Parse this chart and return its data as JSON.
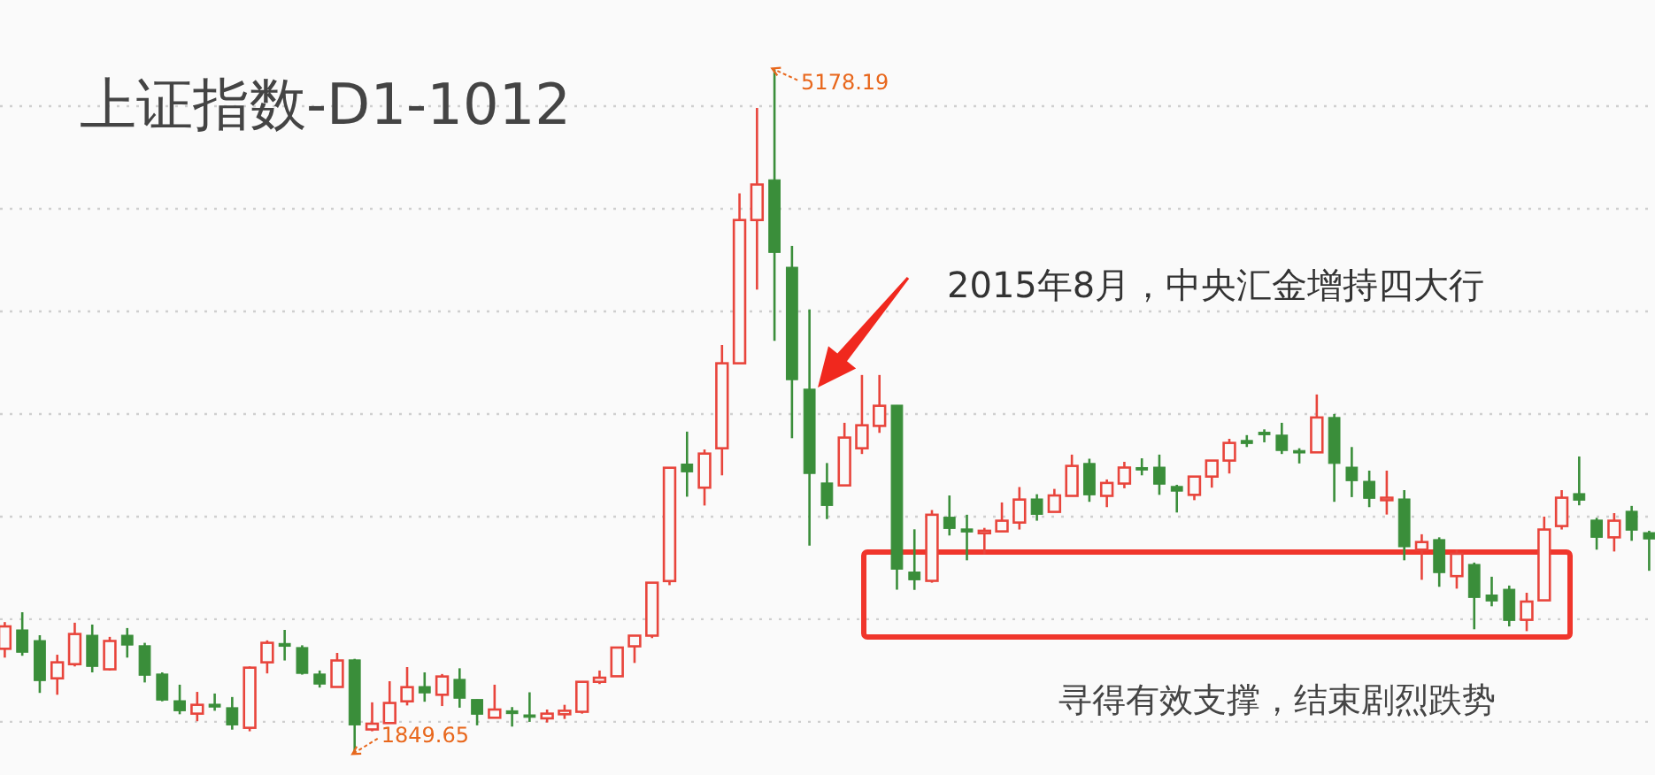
{
  "chart_data": {
    "type": "candlestick",
    "title": "上证指数-D1-1012",
    "annotations": [
      "2015年8月，中央汇金增持四大行",
      "寻得有效支撑，结束剧烈跌势",
      "5178.19",
      "1849.65"
    ],
    "categories": [
      null,
      null,
      null,
      null,
      null,
      null,
      null,
      null,
      null,
      null,
      null,
      null,
      null,
      null,
      null,
      null,
      null,
      null,
      null,
      null,
      null,
      null,
      null,
      null,
      null,
      null,
      null,
      null,
      null,
      null,
      null,
      null,
      null,
      null,
      null,
      null,
      null,
      null,
      null,
      null,
      null,
      null,
      null,
      null,
      null,
      null,
      null,
      null,
      null,
      null,
      null,
      null,
      null,
      null,
      null,
      null,
      null,
      null,
      null,
      null,
      null,
      null,
      null,
      null,
      null,
      null,
      null,
      null,
      null,
      null,
      null,
      null,
      null,
      null,
      null,
      null,
      null,
      null,
      null,
      null,
      null,
      null,
      null,
      null,
      null,
      null,
      null,
      null,
      null,
      null,
      null,
      null,
      null,
      null,
      null
    ],
    "ohlc": [
      [
        2356,
        2486,
        2313,
        2465
      ],
      [
        2448,
        2534,
        2322,
        2339
      ],
      [
        2396,
        2422,
        2141,
        2201
      ],
      [
        2212,
        2327,
        2132,
        2290
      ],
      [
        2281,
        2483,
        2270,
        2428
      ],
      [
        2422,
        2474,
        2241,
        2270
      ],
      [
        2256,
        2414,
        2250,
        2394
      ],
      [
        2422,
        2457,
        2313,
        2374
      ],
      [
        2371,
        2385,
        2192,
        2227
      ],
      [
        2233,
        2241,
        2100,
        2106
      ],
      [
        2103,
        2181,
        2037,
        2054
      ],
      [
        2040,
        2146,
        2003,
        2083
      ],
      [
        2086,
        2138,
        2054,
        2072
      ],
      [
        2069,
        2121,
        1962,
        1985
      ],
      [
        1971,
        2270,
        1954,
        2264
      ],
      [
        2290,
        2397,
        2236,
        2385
      ],
      [
        2382,
        2448,
        2299,
        2368
      ],
      [
        2362,
        2373,
        2230,
        2236
      ],
      [
        2233,
        2250,
        2167,
        2184
      ],
      [
        2170,
        2336,
        2170,
        2299
      ],
      [
        2302,
        2307,
        1849.65,
        1985
      ],
      [
        1963,
        2095,
        1954,
        1991
      ],
      [
        1994,
        2198,
        1994,
        2092
      ],
      [
        2100,
        2267,
        2080,
        2169
      ],
      [
        2172,
        2241,
        2098,
        2141
      ],
      [
        2132,
        2233,
        2077,
        2221
      ],
      [
        2207,
        2261,
        2069,
        2115
      ],
      [
        2109,
        2109,
        1983,
        2037
      ],
      [
        2020,
        2181,
        2020,
        2060
      ],
      [
        2054,
        2072,
        1977,
        2040
      ],
      [
        2034,
        2144,
        2000,
        2029
      ],
      [
        2017,
        2060,
        1997,
        2040
      ],
      [
        2037,
        2083,
        2014,
        2054
      ],
      [
        2049,
        2198,
        2040,
        2195
      ],
      [
        2195,
        2250,
        2184,
        2215
      ],
      [
        2222,
        2362,
        2222,
        2362
      ],
      [
        2368,
        2420,
        2287,
        2420
      ],
      [
        2420,
        2678,
        2408,
        2678
      ],
      [
        2686,
        3238,
        2666,
        3238
      ],
      [
        3256,
        3414,
        3097,
        3218
      ],
      [
        3141,
        3327,
        3054,
        3307
      ],
      [
        3333,
        3836,
        3201,
        3747
      ],
      [
        3747,
        4575,
        3747,
        4445
      ],
      [
        4445,
        4991,
        4106,
        4618
      ],
      [
        4641,
        5178.19,
        3856,
        4287
      ],
      [
        4215,
        4319,
        3382,
        3667
      ],
      [
        3621,
        4009,
        2859,
        3210
      ],
      [
        3164,
        3261,
        2988,
        3054
      ],
      [
        3152,
        3457,
        3152,
        3385
      ],
      [
        3333,
        3690,
        3305,
        3445
      ],
      [
        3442,
        3690,
        3408,
        3540
      ],
      [
        3543,
        3543,
        2644,
        2744
      ],
      [
        2730,
        2938,
        2643,
        2692
      ],
      [
        2687,
        3032,
        2678,
        3009
      ],
      [
        2997,
        3103,
        2908,
        2942
      ],
      [
        2940,
        3009,
        2787,
        2925
      ],
      [
        2920,
        2945,
        2816,
        2931
      ],
      [
        2928,
        3069,
        2928,
        2980
      ],
      [
        2971,
        3144,
        2937,
        3083
      ],
      [
        3086,
        3109,
        2980,
        3011
      ],
      [
        3023,
        3135,
        3023,
        3103
      ],
      [
        3101,
        3302,
        3101,
        3247
      ],
      [
        3259,
        3282,
        3072,
        3106
      ],
      [
        3101,
        3181,
        3046,
        3164
      ],
      [
        3161,
        3267,
        3138,
        3239
      ],
      [
        3239,
        3284,
        3201,
        3227
      ],
      [
        3241,
        3302,
        3106,
        3158
      ],
      [
        3147,
        3155,
        3020,
        3124
      ],
      [
        3106,
        3195,
        3080,
        3195
      ],
      [
        3195,
        3273,
        3141,
        3273
      ],
      [
        3273,
        3379,
        3210,
        3359
      ],
      [
        3371,
        3397,
        3339,
        3356
      ],
      [
        3411,
        3425,
        3362,
        3405
      ],
      [
        3397,
        3457,
        3305,
        3322
      ],
      [
        3322,
        3333,
        3259,
        3313
      ],
      [
        3313,
        3595,
        3313,
        3483
      ],
      [
        3483,
        3500,
        3072,
        3259
      ],
      [
        3241,
        3339,
        3095,
        3175
      ],
      [
        3172,
        3224,
        3046,
        3089
      ],
      [
        3083,
        3224,
        3010,
        3092
      ],
      [
        3086,
        3129,
        2787,
        2853
      ],
      [
        2839,
        2914,
        2692,
        2876
      ],
      [
        2888,
        2899,
        2658,
        2727
      ],
      [
        2710,
        2839,
        2649,
        2819
      ],
      [
        2767,
        2776,
        2451,
        2606
      ],
      [
        2618,
        2707,
        2563,
        2589
      ],
      [
        2646,
        2664,
        2465,
        2494
      ],
      [
        2497,
        2629,
        2442,
        2586
      ],
      [
        2592,
        3000,
        2592,
        2937
      ],
      [
        2954,
        3129,
        2937,
        3092
      ],
      [
        3112,
        3293,
        3055,
        3080
      ],
      [
        2983,
        2994,
        2839,
        2899
      ],
      [
        2899,
        3017,
        2830,
        2980
      ],
      [
        3026,
        3052,
        2882,
        2934
      ],
      [
        2922,
        2931,
        2736,
        2891
      ]
    ],
    "colors": [
      "#e8453c",
      "#3a8e3a",
      "#3a8e3a",
      "#e8453c",
      "#e8453c",
      "#3a8e3a",
      "#e8453c",
      "#3a8e3a",
      "#3a8e3a",
      "#3a8e3a",
      "#3a8e3a",
      "#e8453c",
      "#3a8e3a",
      "#3a8e3a",
      "#e8453c",
      "#e8453c",
      "#3a8e3a",
      "#3a8e3a",
      "#3a8e3a",
      "#e8453c",
      "#3a8e3a",
      "#e8453c",
      "#e8453c",
      "#e8453c",
      "#3a8e3a",
      "#e8453c",
      "#3a8e3a",
      "#3a8e3a",
      "#e8453c",
      "#3a8e3a",
      "#3a8e3a",
      "#e8453c",
      "#e8453c",
      "#e8453c",
      "#e8453c",
      "#e8453c",
      "#e8453c",
      "#e8453c",
      "#e8453c",
      "#3a8e3a",
      "#e8453c",
      "#e8453c",
      "#e8453c",
      "#e8453c",
      "#3a8e3a",
      "#3a8e3a",
      "#3a8e3a",
      "#3a8e3a",
      "#e8453c",
      "#e8453c",
      "#e8453c",
      "#3a8e3a",
      "#3a8e3a",
      "#e8453c",
      "#3a8e3a",
      "#3a8e3a",
      "#e8453c",
      "#e8453c",
      "#e8453c",
      "#3a8e3a",
      "#e8453c",
      "#e8453c",
      "#3a8e3a",
      "#e8453c",
      "#e8453c",
      "#3a8e3a",
      "#3a8e3a",
      "#3a8e3a",
      "#e8453c",
      "#e8453c",
      "#e8453c",
      "#3a8e3a",
      "#3a8e3a",
      "#3a8e3a",
      "#3a8e3a",
      "#e8453c",
      "#3a8e3a",
      "#3a8e3a",
      "#3a8e3a",
      "#e8453c",
      "#3a8e3a",
      "#e8453c",
      "#3a8e3a",
      "#e8453c",
      "#3a8e3a",
      "#3a8e3a",
      "#3a8e3a",
      "#e8453c",
      "#e8453c",
      "#e8453c",
      "#3a8e3a",
      "#3a8e3a",
      "#e8453c",
      "#3a8e3a",
      "#3a8e3a"
    ],
    "yticks": [
      {
        "value": 2000,
        "label": null
      },
      {
        "value": 2500,
        "label": null
      },
      {
        "value": 3000,
        "label": null
      },
      {
        "value": 3500,
        "label": null
      },
      {
        "value": 4000,
        "label": null
      },
      {
        "value": 4500,
        "label": null
      },
      {
        "value": 5000,
        "label": null
      }
    ],
    "grid": "y"
  }
}
